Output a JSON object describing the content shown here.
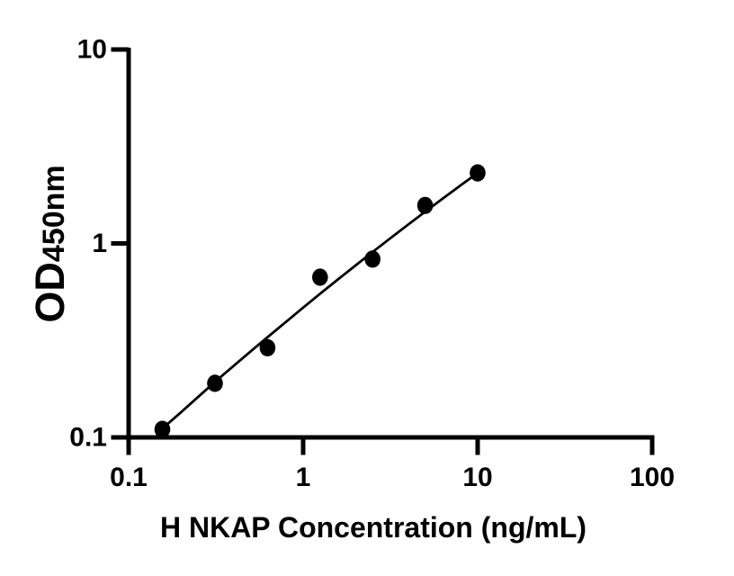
{
  "figure": {
    "background_color": "#ffffff",
    "ink_color": "#000000"
  },
  "chart_data": {
    "type": "scatter",
    "subtype": "elisa-standard-curve",
    "title": "",
    "xlabel": "H NKAP Concentration (ng/mL)",
    "ylabel": "OD450nm",
    "ylabel_prefix": "OD",
    "ylabel_suffix": "450nm",
    "x_scale": "log10",
    "y_scale": "log10",
    "xlim": [
      0.1,
      100
    ],
    "ylim": [
      0.1,
      10
    ],
    "grid": false,
    "legend_position": "none",
    "x_ticks": [
      {
        "value": 0.1,
        "label": "0.1"
      },
      {
        "value": 1,
        "label": "1"
      },
      {
        "value": 10,
        "label": "10"
      },
      {
        "value": 100,
        "label": "100"
      }
    ],
    "y_ticks": [
      {
        "value": 0.1,
        "label": "0.1"
      },
      {
        "value": 1,
        "label": "1"
      },
      {
        "value": 10,
        "label": "10"
      }
    ],
    "series": [
      {
        "name": "standard-curve-points",
        "marker": "filled-circle",
        "color": "#000000",
        "points": [
          {
            "x": 0.156,
            "y": 0.11
          },
          {
            "x": 0.3125,
            "y": 0.19
          },
          {
            "x": 0.625,
            "y": 0.29
          },
          {
            "x": 1.25,
            "y": 0.67
          },
          {
            "x": 2.5,
            "y": 0.83
          },
          {
            "x": 5,
            "y": 1.57
          },
          {
            "x": 10,
            "y": 2.31
          }
        ]
      }
    ],
    "fit_curve": {
      "name": "fitted-trend-line",
      "color": "#000000",
      "points": [
        [
          0.156,
          0.111
        ],
        [
          0.2,
          0.135
        ],
        [
          0.251,
          0.162
        ],
        [
          0.316,
          0.195
        ],
        [
          0.398,
          0.233
        ],
        [
          0.501,
          0.278
        ],
        [
          0.631,
          0.331
        ],
        [
          0.794,
          0.393
        ],
        [
          1.0,
          0.467
        ],
        [
          1.259,
          0.553
        ],
        [
          1.585,
          0.653
        ],
        [
          1.995,
          0.77
        ],
        [
          2.512,
          0.906
        ],
        [
          3.162,
          1.064
        ],
        [
          3.981,
          1.248
        ],
        [
          5.012,
          1.459
        ],
        [
          6.31,
          1.704
        ],
        [
          7.943,
          1.986
        ],
        [
          10,
          2.309
        ]
      ]
    }
  }
}
